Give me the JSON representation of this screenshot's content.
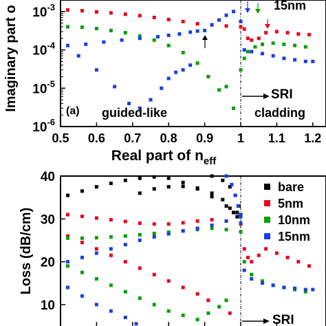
{
  "chart_data": [
    {
      "type": "scatter",
      "panel_label": "(a)",
      "xlabel": "Real part of n",
      "xlabel_sub": "eff",
      "ylabel": "Imaginary part o",
      "xlim": [
        0.5,
        1.2
      ],
      "ylim": [
        1e-06,
        0.002
      ],
      "yscale": "log",
      "x_ticks": [
        "0.5",
        "0.6",
        "0.7",
        "0.8",
        "0.9",
        "1",
        "1.1",
        "1.2"
      ],
      "y_ticks": [
        {
          "base": "10",
          "exp": "-6",
          "value": 1e-06
        },
        {
          "base": "10",
          "exp": "-5",
          "value": 1e-05
        },
        {
          "base": "10",
          "exp": "-4",
          "value": 0.0001
        },
        {
          "base": "10",
          "exp": "-3",
          "value": 0.001
        }
      ],
      "legend_text": "15nm",
      "annotations": {
        "left": "guided-like",
        "right": "cladding",
        "sri": "SRI"
      },
      "series": [
        {
          "color": "#e8001c",
          "x": [
            0.52,
            0.56,
            0.6,
            0.64,
            0.68,
            0.72,
            0.76,
            0.8,
            0.84,
            0.88,
            0.92,
            0.96,
            1.0,
            1.01,
            1.02,
            1.03,
            1.05,
            1.07,
            1.1,
            1.13,
            1.16,
            1.19
          ],
          "y": [
            0.0011,
            0.00105,
            0.00098,
            0.00092,
            0.00085,
            0.00078,
            0.0007,
            0.00062,
            0.00055,
            0.00048,
            0.00045,
            0.00042,
            0.0004,
            0.00035,
            0.0002,
            0.00018,
            0.0002,
            0.00028,
            0.0003,
            0.00028,
            0.00026,
            0.00025
          ]
        },
        {
          "color": "#00a000",
          "x": [
            0.52,
            0.56,
            0.6,
            0.64,
            0.68,
            0.72,
            0.76,
            0.8,
            0.84,
            0.88,
            0.91,
            0.94,
            0.96,
            0.98,
            1.0,
            1.01,
            1.02,
            1.04,
            1.06,
            1.09,
            1.12,
            1.15,
            1.18
          ],
          "y": [
            0.0004,
            0.00039,
            0.00036,
            0.00032,
            0.00028,
            0.00023,
            0.00018,
            0.00013,
            8.5e-05,
            4.5e-05,
            2e-05,
            9e-06,
            1.1e-05,
            3e-06,
            3e-05,
            6e-05,
            9e-05,
            0.00012,
            0.00014,
            0.00015,
            0.00014,
            0.00013,
            0.00012
          ]
        },
        {
          "color": "#1a3fe0",
          "x": [
            0.52,
            0.57,
            0.62,
            0.67,
            0.72,
            0.77,
            0.8,
            0.83,
            0.86,
            0.88,
            0.9,
            0.92,
            0.94,
            0.96,
            0.98,
            1.0,
            1.01,
            1.03,
            1.06,
            1.09,
            1.12,
            1.15,
            1.18,
            1.2
          ],
          "y": [
            0.00013,
            0.00014,
            0.00016,
            0.00018,
            0.0002,
            0.00022,
            0.00024,
            0.00026,
            0.00029,
            0.00031,
            0.00032,
            0.00045,
            0.0006,
            0.0008,
            0.001,
            0.00055,
            0.0001,
            9e-05,
            8e-05,
            7e-05,
            6e-05,
            5.5e-05,
            5e-05,
            5e-05
          ]
        },
        {
          "color": "#1a3fe0",
          "x": [
            0.55,
            0.6,
            0.65,
            0.69,
            0.72,
            0.75,
            0.78,
            0.8,
            0.82,
            0.84,
            0.86
          ],
          "y": [
            7e-05,
            3e-05,
            1.1e-05,
            4e-06,
            3e-06,
            5e-06,
            1e-05,
            1.8e-05,
            2.6e-05,
            3e-05,
            4e-05
          ]
        }
      ]
    },
    {
      "type": "scatter",
      "ylabel": "Loss (dB/cm)",
      "xlim": [
        0.5,
        1.2
      ],
      "ylim": [
        5,
        40
      ],
      "y_ticks": [
        "10",
        "20",
        "30",
        "40"
      ],
      "legend": [
        {
          "label": "bare",
          "color": "#000000"
        },
        {
          "label": "5nm",
          "color": "#e8001c"
        },
        {
          "label": "10nm",
          "color": "#00a000"
        },
        {
          "label": "15nm",
          "color": "#1a3fe0"
        }
      ],
      "annotations": {
        "sri": "SRI"
      },
      "series": [
        {
          "color": "#000000",
          "x": [
            0.52,
            0.56,
            0.6,
            0.64,
            0.68,
            0.72,
            0.76,
            0.8,
            0.84,
            0.88,
            0.92,
            0.96,
            0.99,
            1.0
          ],
          "y": [
            35.5,
            36.5,
            37.5,
            38.3,
            39,
            39.5,
            39.8,
            39.5,
            38.5,
            37,
            35.2,
            33,
            31.5,
            30.5
          ]
        },
        {
          "color": "#000000",
          "x": [
            0.72,
            0.76,
            0.8,
            0.84,
            0.88,
            0.92,
            0.95,
            0.97,
            0.98,
            0.99
          ],
          "y": [
            36,
            37,
            37.5,
            37.6,
            37.2,
            36,
            34.5,
            32.5,
            31.5,
            30.5
          ]
        },
        {
          "color": "#000000",
          "x": [
            0.92,
            0.95,
            0.97,
            0.985,
            0.995,
            1.0
          ],
          "y": [
            40,
            39,
            37.5,
            35.5,
            33,
            31
          ]
        },
        {
          "color": "#e8001c",
          "x": [
            0.52,
            0.56,
            0.6,
            0.64,
            0.68,
            0.72,
            0.76,
            0.8,
            0.84,
            0.88,
            0.92,
            0.96,
            1.0
          ],
          "y": [
            31,
            30.6,
            30.2,
            29.8,
            29.4,
            29,
            28.8,
            28.8,
            29.1,
            29.5,
            29.8,
            29.5,
            28.8
          ]
        },
        {
          "color": "#e8001c",
          "x": [
            0.52,
            0.56,
            0.6,
            0.64,
            0.68,
            0.72,
            0.76,
            0.8,
            0.84,
            0.88,
            0.91,
            0.94,
            0.97
          ],
          "y": [
            26,
            24.5,
            23,
            21.5,
            20,
            18.5,
            17,
            15.5,
            14,
            12.5,
            11,
            9.5,
            8
          ]
        },
        {
          "color": "#e8001c",
          "x": [
            1.01,
            1.02,
            1.03,
            1.05,
            1.07,
            1.1,
            1.13,
            1.16,
            1.19
          ],
          "y": [
            23,
            21,
            20,
            21.5,
            23,
            22,
            21,
            20,
            19
          ]
        },
        {
          "color": "#00a000",
          "x": [
            0.52,
            0.56,
            0.6,
            0.64,
            0.68,
            0.72,
            0.76,
            0.8,
            0.84,
            0.88,
            0.92,
            0.96,
            1.0
          ],
          "y": [
            25.5,
            25.5,
            25.6,
            25.8,
            26,
            26.3,
            26.6,
            26.9,
            27.2,
            27.5,
            27.8,
            27.5,
            27
          ]
        },
        {
          "color": "#00a000",
          "x": [
            0.52,
            0.56,
            0.6,
            0.64,
            0.68,
            0.72,
            0.76,
            0.8,
            0.84,
            0.88,
            0.91,
            0.94,
            0.96
          ],
          "y": [
            19,
            17.5,
            16,
            14.5,
            13,
            11.5,
            10,
            8.5,
            7.5,
            6.5,
            8,
            9.5,
            11
          ]
        },
        {
          "color": "#00a000",
          "x": [
            1.01,
            1.03,
            1.06,
            1.09,
            1.12,
            1.15,
            1.18
          ],
          "y": [
            20,
            17,
            15.5,
            14.5,
            14,
            13.5,
            13
          ]
        },
        {
          "color": "#1a3fe0",
          "x": [
            0.52,
            0.56,
            0.6,
            0.64,
            0.68,
            0.72,
            0.76,
            0.8,
            0.84,
            0.88,
            0.92,
            0.96,
            1.0
          ],
          "y": [
            20,
            21,
            22,
            23,
            24,
            25,
            25.8,
            26.5,
            27.2,
            27.8,
            28.5,
            29.5,
            30.5
          ]
        },
        {
          "color": "#1a3fe0",
          "x": [
            0.52,
            0.56,
            0.6,
            0.64,
            0.68,
            0.71
          ],
          "y": [
            14,
            12,
            10,
            8.5,
            7,
            5.5
          ]
        },
        {
          "color": "#1a3fe0",
          "x": [
            0.96,
            0.975,
            0.985,
            0.993,
            0.998,
            1.0
          ],
          "y": [
            40,
            38,
            35.5,
            33,
            31,
            29
          ]
        },
        {
          "color": "#1a3fe0",
          "x": [
            1.01,
            1.03,
            1.06,
            1.09,
            1.12,
            1.15,
            1.18,
            1.2
          ],
          "y": [
            18,
            16,
            15,
            14.5,
            14,
            13.8,
            13.5,
            13.5
          ]
        }
      ]
    }
  ]
}
